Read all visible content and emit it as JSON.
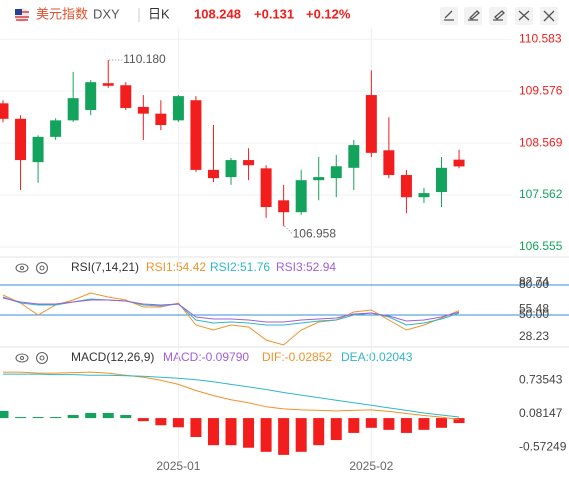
{
  "header": {
    "name": "美元指数",
    "symbol": "DXY",
    "period": "日K",
    "price": "108.248",
    "change": "+0.131",
    "change_pct": "+0.12%"
  },
  "chart_data": [
    {
      "type": "candlestick",
      "categories": [
        null,
        null,
        null,
        null,
        null,
        null,
        null,
        null,
        null,
        null,
        "2025-01",
        null,
        null,
        null,
        null,
        null,
        null,
        null,
        null,
        null,
        null,
        "2025-02",
        null,
        null,
        null,
        null,
        null
      ],
      "open": [
        109.04,
        108.24,
        108.69,
        109.01,
        109.44,
        109.75,
        109.68,
        109.25,
        109.14,
        108.92,
        109.48,
        108.05,
        107.89,
        108.24,
        108.14,
        107.33,
        107.23,
        107.85,
        107.91,
        108.12,
        108.53,
        108.38,
        107.95,
        107.52,
        107.6,
        108.09,
        108.117
      ],
      "high": [
        109.4,
        109.11,
        108.72,
        109.05,
        109.95,
        109.79,
        110.18,
        109.75,
        109.5,
        109.4,
        109.5,
        109.48,
        108.92,
        108.28,
        108.47,
        108.14,
        107.76,
        108.05,
        108.3,
        108.34,
        108.63,
        109.98,
        109.07,
        108.05,
        107.7,
        108.3,
        108.44
      ],
      "low": [
        108.97,
        107.66,
        107.8,
        108.63,
        108.98,
        109.11,
        109.64,
        109.21,
        108.63,
        108.82,
        108.98,
        108.01,
        107.81,
        107.76,
        107.85,
        107.12,
        106.958,
        107.18,
        107.46,
        107.52,
        107.66,
        108.3,
        107.89,
        107.21,
        107.41,
        107.33,
        108.08
      ],
      "close": [
        109.34,
        109.04,
        108.2,
        108.69,
        109.01,
        109.21,
        109.73,
        109.69,
        109.27,
        109.14,
        109.01,
        109.4,
        108.05,
        107.91,
        108.24,
        108.08,
        107.46,
        107.23,
        107.85,
        107.89,
        108.09,
        109.5,
        108.43,
        107.95,
        107.52,
        107.62,
        108.248
      ],
      "up_color": "#f21d1d",
      "down_color": "#14a35c",
      "ylim": [
        106.4,
        110.8
      ],
      "yticks": [
        106.555,
        107.562,
        108.569,
        109.576,
        110.583
      ],
      "grid": true,
      "max_label": "110.180",
      "min_label": "106.958"
    },
    {
      "type": "line",
      "title": "RSI(7,14,21)",
      "series": [
        {
          "name": "RSI1:54.42",
          "color": "#f0932b",
          "values": [
            70,
            62,
            50,
            60,
            65,
            72,
            68,
            65,
            58,
            58,
            62,
            40,
            35,
            40,
            38,
            25,
            20,
            35,
            43,
            45,
            53,
            55,
            45,
            35,
            40,
            47,
            54.42
          ]
        },
        {
          "name": "RSI2:51.76",
          "color": "#2fb7c9",
          "values": [
            68,
            62,
            60,
            60,
            63,
            66,
            65,
            64,
            60,
            59,
            61,
            45,
            42,
            43,
            42,
            40,
            40,
            42,
            44,
            45,
            50,
            52,
            48,
            40,
            42,
            46,
            51.76
          ]
        },
        {
          "name": "RSI3:52.94",
          "color": "#a05fd6",
          "values": [
            67,
            63,
            61,
            61,
            63,
            65,
            65,
            64,
            61,
            60,
            61,
            48,
            46,
            46,
            45,
            43,
            43,
            45,
            46,
            47,
            51,
            52,
            49,
            44,
            45,
            48,
            52.94
          ]
        }
      ],
      "ylim": [
        20,
        90
      ],
      "yticks": [
        28.23,
        55.48,
        82.74
      ],
      "reference_lines": [
        {
          "value": 80,
          "label": "80.00"
        },
        {
          "value": 50,
          "label": "50.00"
        }
      ],
      "reference_color": "#3a8fd9"
    },
    {
      "type": "macd",
      "title": "MACD(12,26,9)",
      "series": [
        {
          "name": "MACD:-0.09790",
          "color": "#a05fd6",
          "kind": "bar",
          "values": [
            0.14,
            0.02,
            0.02,
            0.02,
            0.06,
            0.1,
            0.1,
            0.06,
            -0.06,
            -0.14,
            -0.18,
            -0.37,
            -0.53,
            -0.53,
            -0.58,
            -0.66,
            -0.72,
            -0.66,
            -0.53,
            -0.43,
            -0.29,
            -0.19,
            -0.23,
            -0.29,
            -0.23,
            -0.19,
            -0.0979
          ]
        },
        {
          "name": "DIF:-0.02852",
          "color": "#f0932b",
          "kind": "line",
          "values": [
            0.9,
            0.9,
            0.88,
            0.88,
            0.89,
            0.9,
            0.88,
            0.84,
            0.8,
            0.74,
            0.66,
            0.54,
            0.44,
            0.36,
            0.3,
            0.22,
            0.18,
            0.16,
            0.15,
            0.14,
            0.15,
            0.16,
            0.13,
            0.09,
            0.05,
            0.02,
            -0.02852
          ]
        },
        {
          "name": "DEA:0.02043",
          "color": "#2fb7c9",
          "kind": "line",
          "values": [
            0.86,
            0.86,
            0.86,
            0.85,
            0.85,
            0.84,
            0.84,
            0.83,
            0.82,
            0.8,
            0.78,
            0.75,
            0.71,
            0.66,
            0.61,
            0.56,
            0.5,
            0.45,
            0.4,
            0.35,
            0.3,
            0.25,
            0.2,
            0.15,
            0.1,
            0.06,
            0.02043
          ]
        }
      ],
      "positive_color": "#14a35c",
      "negative_color": "#f21d1d",
      "ylim": [
        -0.82,
        0.98
      ],
      "yticks": [
        -0.57249,
        0.08147,
        0.73543
      ]
    }
  ]
}
